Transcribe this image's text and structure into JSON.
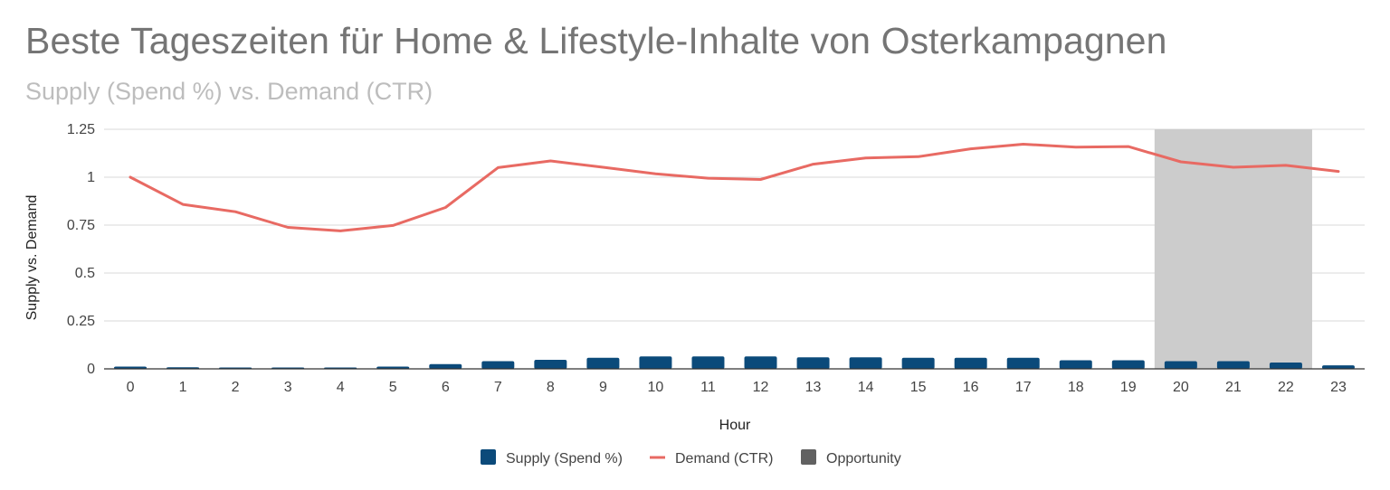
{
  "chart_data": {
    "type": "bar+line",
    "title": "Beste Tageszeiten für Home & Lifestyle-Inhalte von Osterkampagnen",
    "subtitle": "Supply (Spend %) vs. Demand (CTR)",
    "xlabel": "Hour",
    "ylabel": "Supply vs. Demand",
    "ylim": [
      0,
      1.25
    ],
    "yticks": [
      "0",
      "0.25",
      "0.5",
      "0.75",
      "1",
      "1.25"
    ],
    "ytick_values": [
      0,
      0.25,
      0.5,
      0.75,
      1,
      1.25
    ],
    "categories": [
      "0",
      "1",
      "2",
      "3",
      "4",
      "5",
      "6",
      "7",
      "8",
      "9",
      "10",
      "11",
      "12",
      "13",
      "14",
      "15",
      "16",
      "17",
      "18",
      "19",
      "20",
      "21",
      "22",
      "23"
    ],
    "series": [
      {
        "name": "Supply (Spend %)",
        "kind": "bar",
        "color": "#0b4a7a",
        "values": [
          0.012,
          0.008,
          0.007,
          0.007,
          0.007,
          0.012,
          0.025,
          0.04,
          0.047,
          0.058,
          0.065,
          0.065,
          0.065,
          0.06,
          0.06,
          0.058,
          0.058,
          0.058,
          0.045,
          0.045,
          0.04,
          0.04,
          0.033,
          0.018
        ]
      },
      {
        "name": "Demand (CTR)",
        "kind": "line",
        "color": "#e86a63",
        "values": [
          1.0,
          0.858,
          0.82,
          0.738,
          0.72,
          0.748,
          0.842,
          1.05,
          1.085,
          1.052,
          1.018,
          0.995,
          0.988,
          1.068,
          1.1,
          1.107,
          1.148,
          1.172,
          1.157,
          1.16,
          1.08,
          1.052,
          1.062,
          1.03
        ]
      },
      {
        "name": "Opportunity",
        "kind": "band",
        "color": "#cccccc",
        "legend_color": "#616161",
        "x_range": [
          19.5,
          22.5
        ],
        "value": 1.25
      }
    ],
    "grid": true,
    "legend_position": "bottom"
  }
}
